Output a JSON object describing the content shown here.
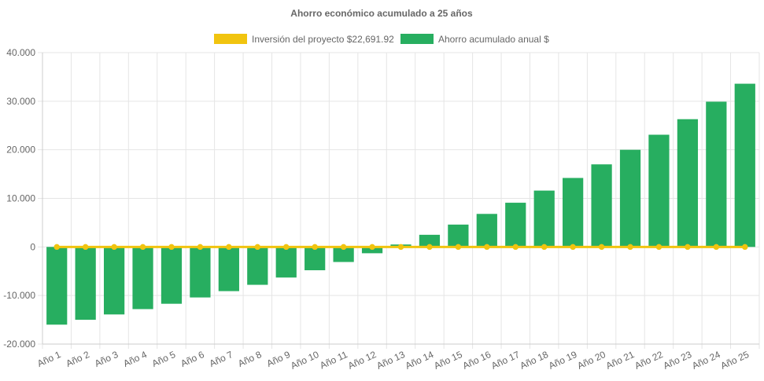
{
  "chart_data": {
    "type": "bar",
    "title": "Ahorro económico acumulado a 25 años",
    "legend_position": "top",
    "grid": true,
    "categories": [
      "Año 1",
      "Año 2",
      "Año 3",
      "Año 4",
      "Año 5",
      "Año 6",
      "Año 7",
      "Año 8",
      "Año 9",
      "Año 10",
      "Año 11",
      "Año 12",
      "Año 13",
      "Año 14",
      "Año 15",
      "Año 16",
      "Año 17",
      "Año 18",
      "Año 19",
      "Año 20",
      "Año 21",
      "Año 22",
      "Año 23",
      "Año 24",
      "Año 25"
    ],
    "ylim": [
      -20000,
      40000
    ],
    "yticks": [
      "40.000",
      "30.000",
      "20.000",
      "10.000",
      "0",
      "-10.000",
      "-20.000"
    ],
    "ytick_values": [
      40000,
      30000,
      20000,
      10000,
      0,
      -10000,
      -20000
    ],
    "series": [
      {
        "name": "Inversión del proyecto $22,691.92",
        "type": "line",
        "color": "#f1c40f",
        "values": [
          0,
          0,
          0,
          0,
          0,
          0,
          0,
          0,
          0,
          0,
          0,
          0,
          0,
          0,
          0,
          0,
          0,
          0,
          0,
          0,
          0,
          0,
          0,
          0,
          0
        ]
      },
      {
        "name": "Ahorro acumulado anual $",
        "type": "bar",
        "color": "#27ae60",
        "values": [
          -16000,
          -15000,
          -13900,
          -12800,
          -11700,
          -10400,
          -9100,
          -7800,
          -6300,
          -4800,
          -3100,
          -1300,
          500,
          2500,
          4600,
          6800,
          9100,
          11600,
          14200,
          17000,
          20000,
          23100,
          26300,
          29900,
          33600
        ]
      }
    ]
  }
}
